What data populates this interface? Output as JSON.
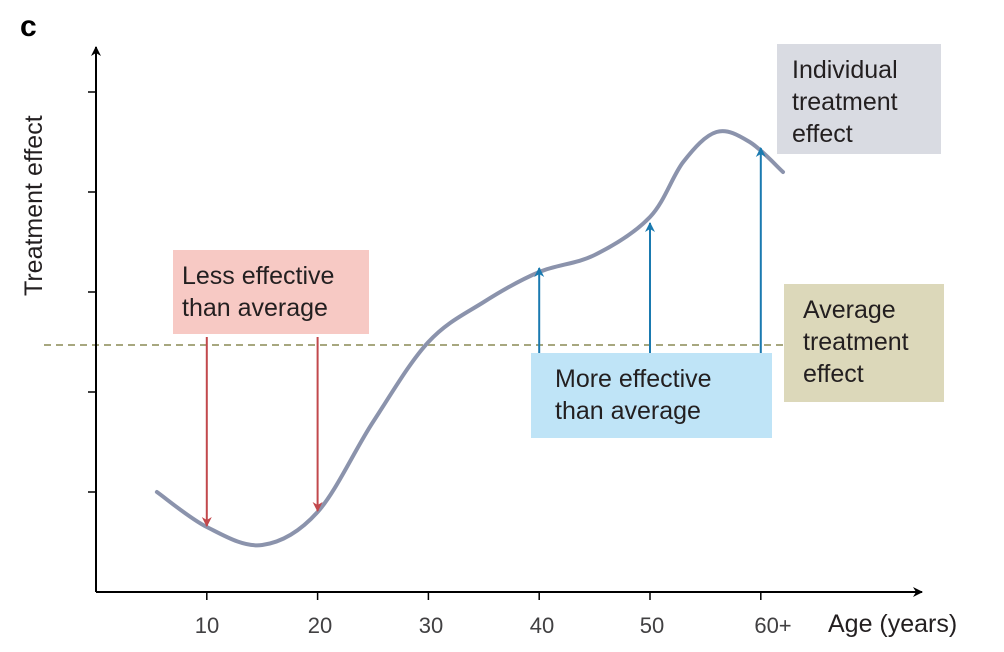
{
  "panel_label": "c",
  "colors": {
    "curve": "#8b93ac",
    "average_line": "#a7a77f",
    "less_arrow": "#c2484c",
    "more_arrow": "#1a7ab0",
    "axis": "#000000"
  },
  "chart_data": {
    "type": "line",
    "title": "",
    "xlabel": "Age (years)",
    "ylabel": "Treatment effect",
    "x_tick_labels": [
      "10",
      "20",
      "30",
      "40",
      "50",
      "60+"
    ],
    "x_tick_values": [
      10,
      20,
      30,
      40,
      50,
      60
    ],
    "xlim": [
      0,
      74
    ],
    "ylim": [
      0,
      5.1
    ],
    "y_ticks": [
      1,
      2,
      3,
      4,
      5
    ],
    "y_tick_labels_shown": false,
    "series": [
      {
        "name": "Individual treatment effect",
        "x": [
          5.5,
          10,
          15,
          20,
          25,
          30,
          35,
          40,
          45,
          50,
          53,
          56,
          59,
          62
        ],
        "y": [
          1.0,
          0.65,
          0.47,
          0.8,
          1.7,
          2.5,
          2.9,
          3.2,
          3.37,
          3.75,
          4.3,
          4.6,
          4.5,
          4.2
        ]
      }
    ],
    "average_treatment_effect": 2.47,
    "arrows": [
      {
        "group": "less",
        "x": 10,
        "from": 2.55,
        "to": 0.65
      },
      {
        "group": "less",
        "x": 20,
        "from": 2.55,
        "to": 0.8
      },
      {
        "group": "more",
        "x": 40,
        "from": 2.38,
        "to": 3.25
      },
      {
        "group": "more",
        "x": 50,
        "from": 2.38,
        "to": 3.7
      },
      {
        "group": "more",
        "x": 60,
        "from": 2.38,
        "to": 4.45
      }
    ],
    "annotations": {
      "less": [
        "Less effective",
        "than average"
      ],
      "more": [
        "More effective",
        "than average"
      ],
      "average": [
        "Average",
        "treatment",
        "effect"
      ],
      "individual": [
        "Individual",
        "treatment",
        "effect"
      ]
    }
  }
}
